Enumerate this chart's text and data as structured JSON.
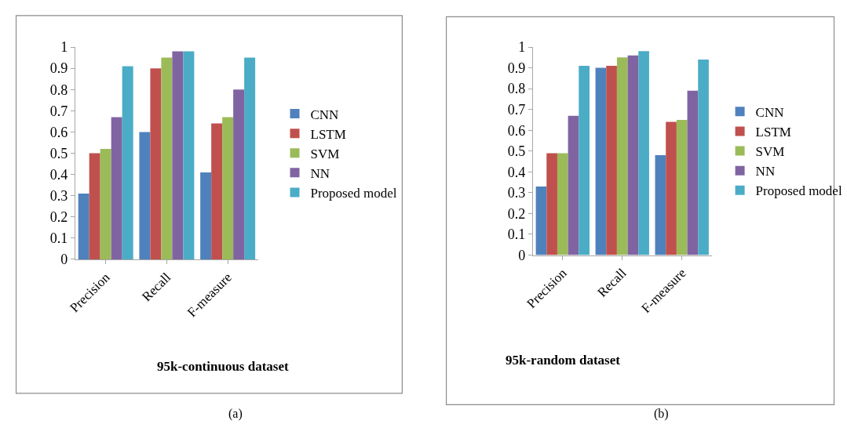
{
  "chart_data": [
    {
      "type": "bar",
      "title": "95k-continuous dataset",
      "categories": [
        "Precision",
        "Recall",
        "F-measure"
      ],
      "ylim": [
        0,
        1
      ],
      "yticks": [
        0,
        0.1,
        0.2,
        0.3,
        0.4,
        0.5,
        0.6,
        0.7,
        0.8,
        0.9,
        1
      ],
      "grid": false,
      "legend": "right",
      "annotations": [
        "(a)"
      ],
      "series": [
        {
          "name": "CNN",
          "color": "#4f81bd",
          "values": [
            0.31,
            0.6,
            0.41
          ]
        },
        {
          "name": "LSTM",
          "color": "#c0504d",
          "values": [
            0.5,
            0.9,
            0.64
          ]
        },
        {
          "name": "SVM",
          "color": "#9bbb59",
          "values": [
            0.52,
            0.95,
            0.67
          ]
        },
        {
          "name": "NN",
          "color": "#8064a2",
          "values": [
            0.67,
            0.98,
            0.8
          ]
        },
        {
          "name": "Proposed model",
          "color": "#4bacc6",
          "values": [
            0.91,
            0.98,
            0.95
          ]
        }
      ]
    },
    {
      "type": "bar",
      "title": "95k-random dataset",
      "categories": [
        "Precision",
        "Recall",
        "F-measure"
      ],
      "ylim": [
        0,
        1
      ],
      "yticks": [
        0,
        0.1,
        0.2,
        0.3,
        0.4,
        0.5,
        0.6,
        0.7,
        0.8,
        0.9,
        1
      ],
      "grid": false,
      "legend": "right",
      "annotations": [
        "(b)"
      ],
      "series": [
        {
          "name": "CNN",
          "color": "#4f81bd",
          "values": [
            0.33,
            0.9,
            0.48
          ]
        },
        {
          "name": "LSTM",
          "color": "#c0504d",
          "values": [
            0.49,
            0.91,
            0.64
          ]
        },
        {
          "name": "SVM",
          "color": "#9bbb59",
          "values": [
            0.49,
            0.95,
            0.65
          ]
        },
        {
          "name": "NN",
          "color": "#8064a2",
          "values": [
            0.67,
            0.96,
            0.79
          ]
        },
        {
          "name": "Proposed model",
          "color": "#4bacc6",
          "values": [
            0.91,
            0.98,
            0.94
          ]
        }
      ]
    }
  ]
}
